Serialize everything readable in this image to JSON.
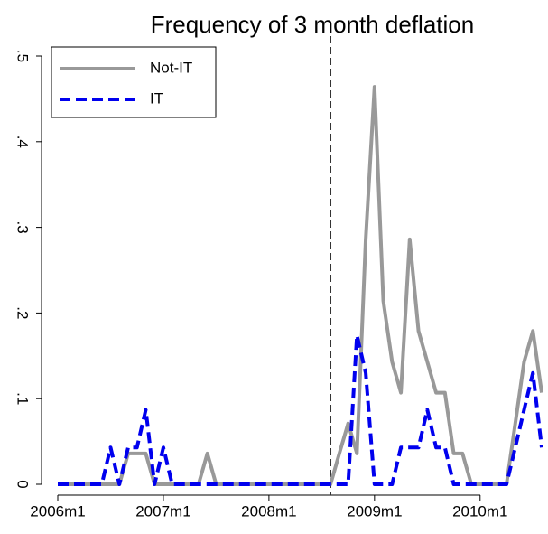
{
  "chart_data": {
    "type": "line",
    "title": "Frequency of 3 month deflation",
    "x": [
      552,
      553,
      554,
      555,
      556,
      557,
      558,
      559,
      560,
      561,
      562,
      563,
      564,
      565,
      566,
      567,
      568,
      569,
      570,
      571,
      572,
      573,
      574,
      575,
      576,
      577,
      578,
      579,
      580,
      581,
      582,
      583,
      584,
      585,
      586,
      587,
      588,
      589,
      590,
      591,
      592,
      593,
      594,
      595,
      596,
      597,
      598,
      599,
      600,
      601,
      602,
      603,
      604,
      605,
      606,
      607
    ],
    "series": [
      {
        "name": "Not-IT",
        "color": "#999999",
        "dash": false,
        "values": [
          0,
          0,
          0,
          0,
          0,
          0,
          0,
          0,
          0.036,
          0.036,
          0.036,
          0,
          0,
          0,
          0,
          0,
          0,
          0.036,
          0,
          0,
          0,
          0,
          0,
          0,
          0,
          0,
          0,
          0,
          0,
          0,
          0,
          0,
          0.036,
          0.071,
          0.036,
          0.286,
          0.464,
          0.214,
          0.143,
          0.107,
          0.286,
          0.179,
          0.143,
          0.107,
          0.107,
          0.036,
          0.036,
          0,
          0,
          0,
          0,
          0,
          0.071,
          0.143,
          0.179,
          0.107
        ]
      },
      {
        "name": "IT",
        "color": "#0000ee",
        "dash": true,
        "values": [
          0,
          0,
          0,
          0,
          0,
          0,
          0.043,
          0,
          0.043,
          0.043,
          0.087,
          0,
          0.043,
          0,
          0,
          0,
          0,
          0,
          0,
          0,
          0,
          0,
          0,
          0,
          0,
          0,
          0,
          0,
          0,
          0,
          0,
          0,
          0,
          0,
          0.174,
          0.13,
          0,
          0,
          0,
          0.043,
          0.043,
          0.043,
          0.087,
          0.043,
          0.043,
          0,
          0,
          0,
          0,
          0,
          0,
          0,
          0.043,
          0.087,
          0.13,
          0.043
        ]
      }
    ],
    "xlim": [
      552,
      607
    ],
    "ylim": [
      0,
      0.5
    ],
    "xticks": [
      {
        "value": 552,
        "label": "2006m1"
      },
      {
        "value": 564,
        "label": "2007m1"
      },
      {
        "value": 576,
        "label": "2008m1"
      },
      {
        "value": 588,
        "label": "2009m1"
      },
      {
        "value": 600,
        "label": "2010m1"
      }
    ],
    "yticks": [
      0,
      {
        "value": 0.1,
        "label": ".1"
      },
      {
        "value": 0.2,
        "label": ".2"
      },
      {
        "value": 0.3,
        "label": ".3"
      },
      {
        "value": 0.4,
        "label": ".4"
      },
      {
        "value": 0.5,
        "label": ".5"
      }
    ],
    "reference_line": 583,
    "legend": "top-left"
  }
}
